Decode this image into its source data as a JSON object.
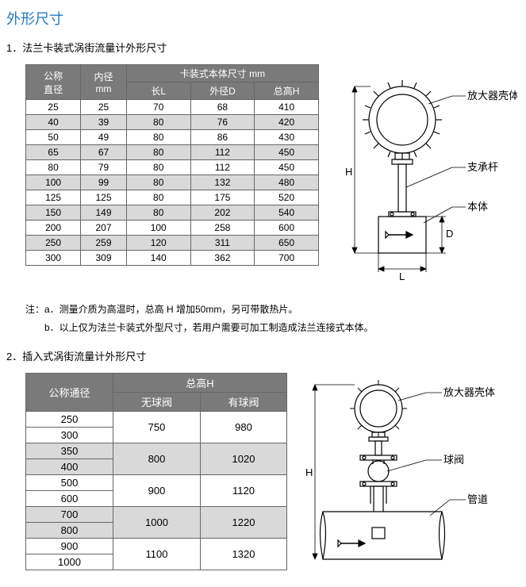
{
  "main_title": "外形尺寸",
  "section1": {
    "heading": "1．法兰卡装式涡街流量计外形尺寸",
    "table": {
      "header_group": "卡装式本体尺寸  mm",
      "cols": [
        "公称\n直径",
        "内径\nmm",
        "长L",
        "外径D",
        "总高H"
      ],
      "rows": [
        [
          "25",
          "25",
          "70",
          "68",
          "410"
        ],
        [
          "40",
          "39",
          "80",
          "76",
          "420"
        ],
        [
          "50",
          "49",
          "80",
          "86",
          "430"
        ],
        [
          "65",
          "67",
          "80",
          "112",
          "450"
        ],
        [
          "80",
          "79",
          "80",
          "112",
          "450"
        ],
        [
          "100",
          "99",
          "80",
          "132",
          "480"
        ],
        [
          "125",
          "125",
          "80",
          "175",
          "520"
        ],
        [
          "150",
          "149",
          "80",
          "202",
          "540"
        ],
        [
          "200",
          "207",
          "100",
          "258",
          "600"
        ],
        [
          "250",
          "259",
          "120",
          "311",
          "650"
        ],
        [
          "300",
          "309",
          "140",
          "362",
          "700"
        ]
      ]
    },
    "notes": [
      "注：a．测量介质为高温时，总高 H 增加50mm，另可带散热片。",
      "　　b．以上仅为法兰卡装式外型尺寸，若用户需要可加工制造成法兰连接式本体。"
    ],
    "diagram": {
      "label_amp": "放大器壳体",
      "label_rod": "支承杆",
      "label_body": "本体",
      "dim_H": "H",
      "dim_D": "D",
      "dim_L": "L"
    }
  },
  "section2": {
    "heading": "2．插入式涡街流量计外形尺寸",
    "table": {
      "header_group": "总高H",
      "cols": [
        "公称通径",
        "无球阀",
        "有球阀"
      ],
      "rows": [
        [
          "250",
          "750",
          "980"
        ],
        [
          "300",
          "750",
          "980"
        ],
        [
          "350",
          "800",
          "1020"
        ],
        [
          "400",
          "800",
          "1020"
        ],
        [
          "500",
          "900",
          "1120"
        ],
        [
          "600",
          "900",
          "1120"
        ],
        [
          "700",
          "1000",
          "1220"
        ],
        [
          "800",
          "1000",
          "1220"
        ],
        [
          "900",
          "1100",
          "1320"
        ],
        [
          "1000",
          "1100",
          "1320"
        ]
      ]
    },
    "diagram": {
      "label_amp": "放大器壳体",
      "label_valve": "球阀",
      "label_pipe": "管道",
      "dim_H": "H"
    }
  }
}
